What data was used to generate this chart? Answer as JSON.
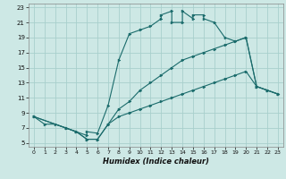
{
  "title": "",
  "xlabel": "Humidex (Indice chaleur)",
  "xlim": [
    -0.5,
    23.5
  ],
  "ylim": [
    4.5,
    23.5
  ],
  "xticks": [
    0,
    1,
    2,
    3,
    4,
    5,
    6,
    7,
    8,
    9,
    10,
    11,
    12,
    13,
    14,
    15,
    16,
    17,
    18,
    19,
    20,
    21,
    22,
    23
  ],
  "yticks": [
    5,
    7,
    9,
    11,
    13,
    15,
    17,
    19,
    21,
    23
  ],
  "background_color": "#cde8e5",
  "grid_color": "#a8d0cc",
  "line_color": "#1a6b6b",
  "line1_x": [
    0,
    1,
    2,
    3,
    4,
    5,
    5,
    6,
    7,
    8,
    9,
    10,
    11,
    12,
    12,
    13,
    13,
    14,
    14,
    15,
    15,
    16,
    16,
    17,
    18,
    19,
    20,
    21,
    22,
    23
  ],
  "line1_y": [
    8.5,
    7.5,
    7.5,
    7.0,
    6.5,
    6.0,
    6.5,
    6.3,
    10.0,
    16.0,
    19.5,
    20.0,
    20.5,
    21.5,
    22.0,
    22.5,
    21.0,
    21.0,
    22.5,
    21.5,
    22.0,
    22.0,
    21.5,
    21.0,
    19.0,
    18.5,
    19.0,
    12.5,
    12.0,
    11.5
  ],
  "line2_x": [
    0,
    3,
    4,
    5,
    6,
    7,
    8,
    9,
    10,
    11,
    12,
    13,
    14,
    15,
    16,
    17,
    18,
    19,
    20,
    21,
    22,
    23
  ],
  "line2_y": [
    8.5,
    7.0,
    6.5,
    5.5,
    5.5,
    7.5,
    9.5,
    10.5,
    12.0,
    13.0,
    14.0,
    15.0,
    16.0,
    16.5,
    17.0,
    17.5,
    18.0,
    18.5,
    19.0,
    12.5,
    12.0,
    11.5
  ],
  "line3_x": [
    0,
    3,
    4,
    5,
    6,
    7,
    8,
    9,
    10,
    11,
    12,
    13,
    14,
    15,
    16,
    17,
    18,
    19,
    20,
    21,
    22,
    23
  ],
  "line3_y": [
    8.5,
    7.0,
    6.5,
    5.5,
    5.5,
    7.5,
    8.5,
    9.0,
    9.5,
    10.0,
    10.5,
    11.0,
    11.5,
    12.0,
    12.5,
    13.0,
    13.5,
    14.0,
    14.5,
    12.5,
    12.0,
    11.5
  ]
}
